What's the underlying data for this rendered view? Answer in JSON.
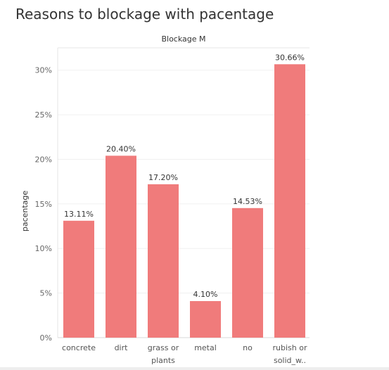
{
  "title": "Reasons to blockage with pacentage",
  "chart_data": {
    "type": "bar",
    "header": "Blockage M",
    "ylabel": "pacentage",
    "xlabel": "",
    "categories": [
      [
        "concrete"
      ],
      [
        "dirt"
      ],
      [
        "grass or",
        "plants"
      ],
      [
        "metal"
      ],
      [
        "no"
      ],
      [
        "rubish or",
        "solid_w.."
      ]
    ],
    "values": [
      13.11,
      20.4,
      17.2,
      4.1,
      14.53,
      30.66
    ],
    "value_labels": [
      "13.11%",
      "20.40%",
      "17.20%",
      "4.10%",
      "14.53%",
      "30.66%"
    ],
    "ylim": [
      0,
      32.5
    ],
    "yticks": [
      0,
      5,
      10,
      15,
      20,
      25,
      30
    ],
    "ytick_labels": [
      "0%",
      "5%",
      "10%",
      "15%",
      "20%",
      "25%",
      "30%"
    ],
    "bar_color": "#f07b7b",
    "grid": true
  }
}
